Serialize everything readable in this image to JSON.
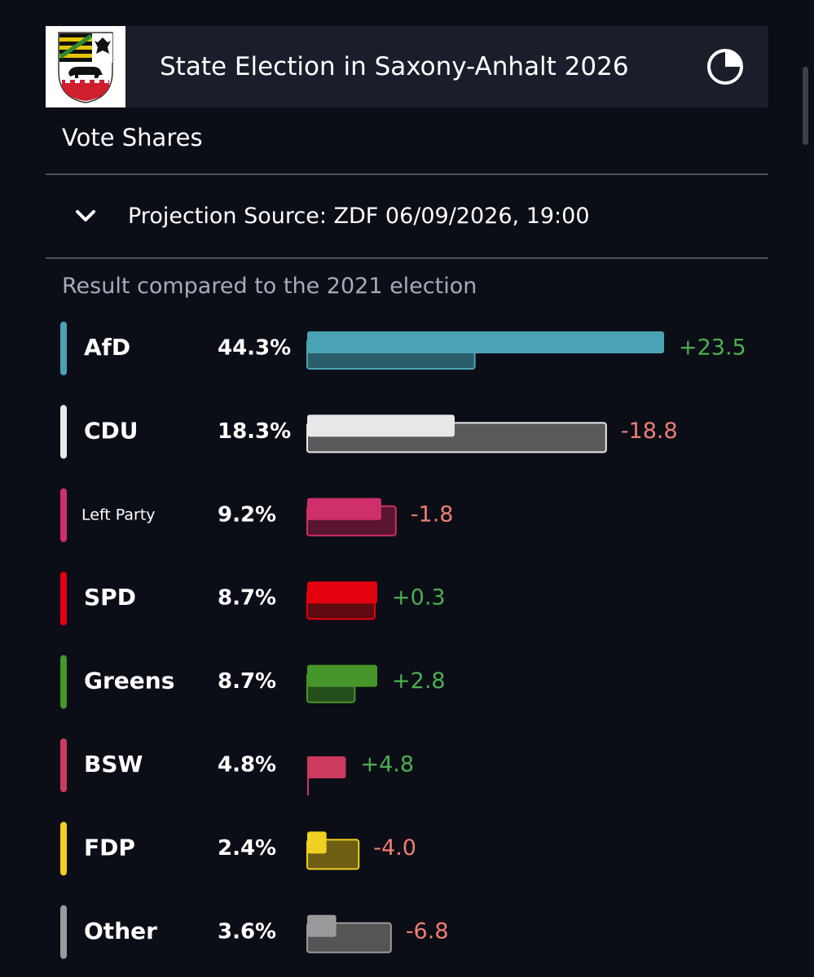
{
  "header": {
    "title": "State Election in Saxony-Anhalt 2026",
    "crest_icon": "coat-of-arms-icon",
    "chart_icon": "pie-chart-icon"
  },
  "section": {
    "title": "Vote Shares"
  },
  "projection": {
    "toggle_icon": "chevron-down-icon",
    "source_text": "Projection Source: ZDF 06/09/2026, 19:00"
  },
  "comparison_label": "Result compared to the 2021 election",
  "colors": {
    "background": "#0b0e16",
    "header_bg": "#1a1e2a",
    "gain": "#4caf50",
    "loss": "#ef7d72"
  },
  "chart_data": {
    "type": "bar",
    "title": "",
    "xlabel": "",
    "ylabel": "",
    "xlim": [
      0,
      44.3
    ],
    "categories": [
      "AfD",
      "CDU",
      "Left Party",
      "SPD",
      "Greens",
      "BSW",
      "FDP",
      "Other"
    ],
    "series": [
      {
        "name": "",
        "values": [
          44.3,
          18.3,
          9.2,
          8.7,
          8.7,
          4.8,
          2.4,
          3.6
        ],
        "labels": [
          "44.3%",
          "18.3%",
          "9.2%",
          "8.7%",
          "8.7%",
          "4.8%",
          "2.4%",
          "3.6%"
        ]
      },
      {
        "name": "",
        "values": [
          20.8,
          37.1,
          11.0,
          8.4,
          5.9,
          0,
          6.4,
          10.4
        ]
      }
    ],
    "changes": [
      "+23.5",
      "-18.8",
      "-1.8",
      "+0.3",
      "+2.8",
      "+4.8",
      "-4.0",
      "-6.8"
    ],
    "party_colors": [
      "#4aa3b4",
      "#e8e8e8",
      "#cf2f6a",
      "#e3000f",
      "#46962b",
      "#cc3a60",
      "#f0d020",
      "#9a9a9a"
    ],
    "previous_colors": [
      "#2a5e6a",
      "#5a5a5a",
      "#5a1530",
      "#5e0a0e",
      "#244f1a",
      "#5a1a2a",
      "#6e5e14",
      "#555555"
    ]
  }
}
